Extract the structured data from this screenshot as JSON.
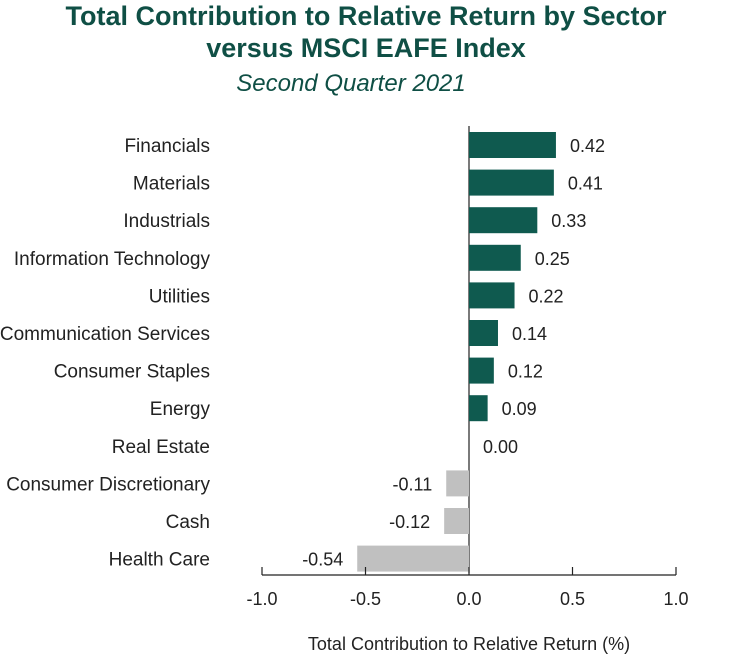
{
  "chart_data": {
    "type": "bar",
    "orientation": "horizontal",
    "title": "Total Contribution to Relative Return by Sector versus MSCI EAFE Index",
    "title_lines": [
      "Total Contribution to Relative Return by Sector",
      "versus MSCI EAFE Index"
    ],
    "subtitle": "Second Quarter 2021",
    "xlabel": "Total Contribution to Relative Return (%)",
    "categories": [
      "Financials",
      "Materials",
      "Industrials",
      "Information Technology",
      "Utilities",
      "Communication Services",
      "Consumer Staples",
      "Energy",
      "Real Estate",
      "Consumer Discretionary",
      "Cash",
      "Health Care"
    ],
    "values": [
      0.42,
      0.41,
      0.33,
      0.25,
      0.22,
      0.14,
      0.12,
      0.09,
      0.0,
      -0.11,
      -0.12,
      -0.54
    ],
    "value_labels": [
      "0.42",
      "0.41",
      "0.33",
      "0.25",
      "0.22",
      "0.14",
      "0.12",
      "0.09",
      "0.00",
      "-0.11",
      "-0.12",
      "-0.54"
    ],
    "xlim": [
      -1.0,
      1.0
    ],
    "xticks": [
      -1.0,
      -0.5,
      0.0,
      0.5,
      1.0
    ],
    "xtick_labels": [
      "-1.0",
      "-0.5",
      "0.0",
      "0.5",
      "1.0"
    ],
    "grid": false,
    "colors": {
      "positive": "#0f5a4f",
      "negative": "#c0c0c0",
      "title": "#0f4f45",
      "axis": "#222222"
    }
  }
}
